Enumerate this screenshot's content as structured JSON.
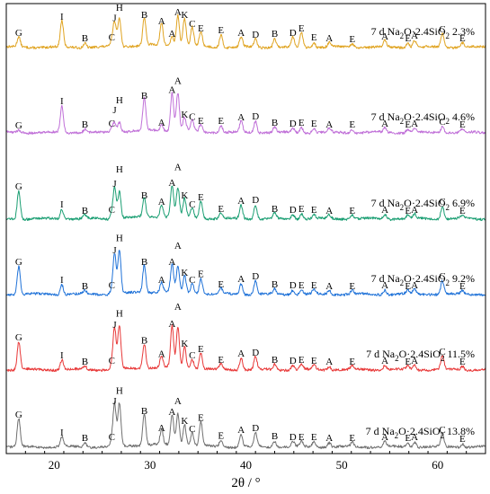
{
  "chart_data": {
    "type": "line",
    "title": "",
    "xlabel": "2θ / °",
    "ylabel": "",
    "xlim": [
      15,
      65
    ],
    "x_ticks": [
      20,
      30,
      40,
      50,
      60
    ],
    "grid": false,
    "legend": "none",
    "peaks": [
      {
        "label": "G",
        "x": 16.3
      },
      {
        "label": "I",
        "x": 20.8
      },
      {
        "label": "B",
        "x": 23.2
      },
      {
        "label": "C",
        "x": 26.0
      },
      {
        "label": "J",
        "x": 26.3
      },
      {
        "label": "H",
        "x": 26.8
      },
      {
        "label": "B",
        "x": 29.4
      },
      {
        "label": "A",
        "x": 31.2
      },
      {
        "label": "A",
        "x": 32.3
      },
      {
        "label": "A",
        "x": 32.9
      },
      {
        "label": "K",
        "x": 33.6
      },
      {
        "label": "C",
        "x": 34.4
      },
      {
        "label": "E",
        "x": 35.3
      },
      {
        "label": "E",
        "x": 37.4
      },
      {
        "label": "A",
        "x": 39.5
      },
      {
        "label": "D",
        "x": 41.0
      },
      {
        "label": "B",
        "x": 43.0
      },
      {
        "label": "D",
        "x": 44.9
      },
      {
        "label": "E",
        "x": 45.8
      },
      {
        "label": "E",
        "x": 47.1
      },
      {
        "label": "A",
        "x": 48.7
      },
      {
        "label": "E",
        "x": 51.1
      },
      {
        "label": "A",
        "x": 54.5
      },
      {
        "label": "E",
        "x": 56.9
      },
      {
        "label": "A",
        "x": 57.6
      },
      {
        "label": "C",
        "x": 60.5
      },
      {
        "label": "E",
        "x": 62.6
      }
    ],
    "series": [
      {
        "name": "7 d  Na2O·2.4SiO2  2.3%",
        "prefix": "7 d  Na",
        "sub1": "2",
        "mid": "O·2.4SiO",
        "sub2": "2",
        "suffix": "  2.3%",
        "color": "#E0A422",
        "intensities": [
          0.22,
          0.58,
          0.1,
          0.12,
          0.55,
          0.65,
          0.62,
          0.48,
          0.2,
          0.68,
          0.62,
          0.42,
          0.32,
          0.28,
          0.22,
          0.18,
          0.2,
          0.22,
          0.32,
          0.12,
          0.1,
          0.08,
          0.14,
          0.1,
          0.16,
          0.3,
          0.1
        ]
      },
      {
        "name": "7 d  Na2O·2.4SiO2  4.6%",
        "prefix": "7 d  Na",
        "sub1": "2",
        "mid": "O·2.4SiO",
        "sub2": "2",
        "suffix": "  4.6%",
        "color": "#C070D8",
        "intensities": [
          0.06,
          0.6,
          0.08,
          0.1,
          0.2,
          0.22,
          0.72,
          0.12,
          0.85,
          0.85,
          0.3,
          0.25,
          0.16,
          0.16,
          0.24,
          0.26,
          0.12,
          0.1,
          0.12,
          0.1,
          0.08,
          0.08,
          0.1,
          0.08,
          0.1,
          0.14,
          0.08
        ]
      },
      {
        "name": "7 d  Na2O·2.4SiO2  6.9%",
        "prefix": "7 d  Na",
        "sub1": "2",
        "mid": "O·2.4SiO",
        "sub2": "2",
        "suffix": "  6.9%",
        "color": "#1A9E72",
        "intensities": [
          0.62,
          0.22,
          0.08,
          0.1,
          0.68,
          0.6,
          0.42,
          0.28,
          0.7,
          0.65,
          0.42,
          0.22,
          0.38,
          0.12,
          0.3,
          0.32,
          0.12,
          0.1,
          0.12,
          0.1,
          0.08,
          0.08,
          0.1,
          0.08,
          0.1,
          0.28,
          0.08
        ]
      },
      {
        "name": "7 d  Na2O·2.4SiO2  9.2%",
        "prefix": "7 d  Na",
        "sub1": "2",
        "mid": "O·2.4SiO",
        "sub2": "2",
        "suffix": "  9.2%",
        "color": "#1F72D8",
        "intensities": [
          0.62,
          0.22,
          0.08,
          0.1,
          0.88,
          0.95,
          0.62,
          0.22,
          0.62,
          0.58,
          0.38,
          0.22,
          0.35,
          0.12,
          0.24,
          0.3,
          0.12,
          0.1,
          0.1,
          0.1,
          0.08,
          0.08,
          0.1,
          0.08,
          0.1,
          0.3,
          0.08
        ]
      },
      {
        "name": "7 d  Na2O·2.4SiO2  11.5%",
        "prefix": "7 d  Na",
        "sub1": "2",
        "mid": "O·2.4SiO",
        "sub2": "2",
        "suffix": "  11.5%",
        "color": "#E83838",
        "intensities": [
          0.62,
          0.22,
          0.08,
          0.1,
          0.9,
          0.95,
          0.55,
          0.25,
          0.92,
          0.9,
          0.48,
          0.22,
          0.36,
          0.12,
          0.26,
          0.28,
          0.12,
          0.1,
          0.12,
          0.1,
          0.08,
          0.08,
          0.1,
          0.08,
          0.1,
          0.3,
          0.08
        ]
      },
      {
        "name": "7 d  Na2O·2.4SiO2  13.8%",
        "prefix": "7 d  Na",
        "sub1": "2",
        "mid": "O·2.4SiO",
        "sub2": "2",
        "suffix": "  13.8%",
        "color": "#707070",
        "intensities": [
          0.62,
          0.22,
          0.1,
          0.12,
          0.92,
          0.95,
          0.7,
          0.32,
          0.68,
          0.72,
          0.48,
          0.3,
          0.55,
          0.15,
          0.28,
          0.32,
          0.14,
          0.12,
          0.12,
          0.12,
          0.1,
          0.1,
          0.12,
          0.1,
          0.12,
          0.28,
          0.08
        ]
      }
    ]
  }
}
